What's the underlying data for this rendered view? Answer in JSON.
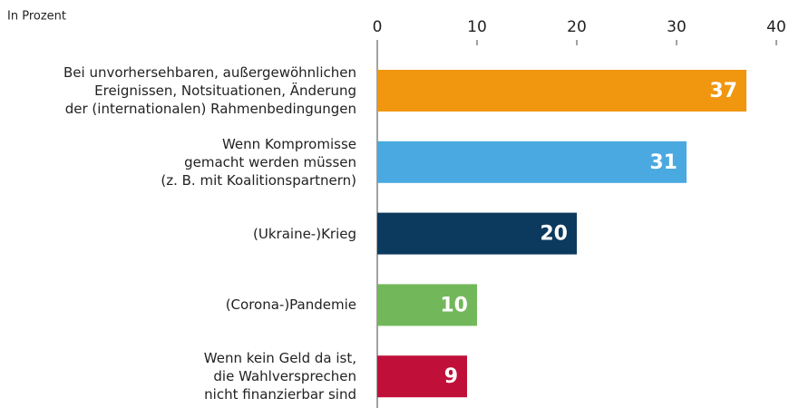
{
  "chart_data": {
    "type": "bar",
    "orientation": "horizontal",
    "subtitle": "In Prozent",
    "categories": [
      "Bei unvorhersehbaren, außergewöhnlichen\nEreignissen, Notsituationen, Änderung\nder (internationalen) Rahmenbedingungen",
      "Wenn Kompromisse\ngemacht werden müssen\n(z. B. mit Koalitionspartnern)",
      "(Ukraine-)Krieg",
      "(Corona-)Pandemie",
      "Wenn kein Geld da ist,\ndie Wahlversprechen\nnicht finanzierbar sind"
    ],
    "values": [
      37,
      31,
      20,
      10,
      9
    ],
    "colors": [
      "#f0960f",
      "#4aa9e0",
      "#0b3a5e",
      "#72b85a",
      "#c0103a"
    ],
    "xlim": [
      0,
      40
    ],
    "xticks": [
      0,
      10,
      20,
      30,
      40
    ]
  }
}
